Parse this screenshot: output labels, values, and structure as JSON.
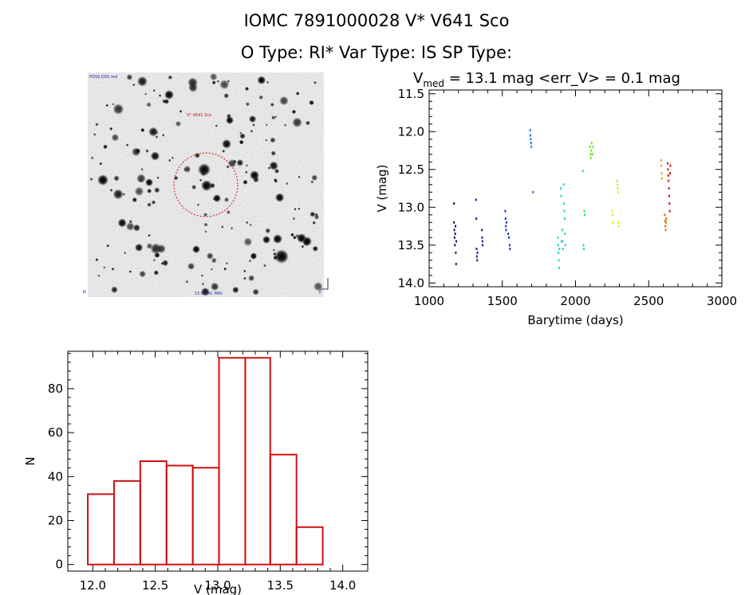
{
  "header": {
    "line1": "IOMC 7891000028    V* V641 Sco",
    "line2": "O Type: RI*  Var Type: IS  SP Type:"
  },
  "sky_image": {
    "label_top_left": "POSS DSS red",
    "label_target": "V* V641 Sco",
    "label_bottom_center": "15.0 ARC MIN",
    "label_bottom_left": "N",
    "label_bottom_right": "E"
  },
  "chart_data": [
    {
      "type": "scatter",
      "title_prefix": "V",
      "title_sub": "med",
      "title_rest": " = 13.1 mag <err_V> = 0.1 mag",
      "xlabel": "Barytime (days)",
      "ylabel": "V (mag)",
      "xlim": [
        1000,
        3000
      ],
      "ylim": [
        14.05,
        11.45
      ],
      "xticks": [
        1000,
        1500,
        2000,
        2500,
        3000
      ],
      "yticks": [
        11.5,
        12.0,
        12.5,
        13.0,
        13.5,
        14.0
      ],
      "series": [
        {
          "name": "s1",
          "color": "#33005a",
          "points": [
            [
              1170,
              12.95
            ],
            [
              1170,
              13.2
            ],
            [
              1172,
              13.3
            ],
            [
              1174,
              13.4
            ],
            [
              1176,
              13.5
            ],
            [
              1178,
              13.35
            ],
            [
              1180,
              13.25
            ],
            [
              1182,
              13.6
            ],
            [
              1184,
              13.75
            ],
            [
              1186,
              13.45
            ]
          ]
        },
        {
          "name": "s2",
          "color": "#2d1a8c",
          "points": [
            [
              1320,
              12.9
            ],
            [
              1322,
              13.15
            ],
            [
              1324,
              13.55
            ],
            [
              1326,
              13.65
            ],
            [
              1328,
              13.7
            ],
            [
              1330,
              13.6
            ],
            [
              1360,
              13.3
            ],
            [
              1362,
              13.4
            ],
            [
              1364,
              13.45
            ],
            [
              1366,
              13.5
            ]
          ]
        },
        {
          "name": "s3",
          "color": "#1f3cb4",
          "points": [
            [
              1520,
              13.05
            ],
            [
              1522,
              13.15
            ],
            [
              1524,
              13.25
            ],
            [
              1526,
              13.3
            ],
            [
              1528,
              13.2
            ],
            [
              1540,
              13.35
            ],
            [
              1545,
              13.4
            ],
            [
              1550,
              13.5
            ],
            [
              1552,
              13.55
            ]
          ]
        },
        {
          "name": "s4",
          "color": "#1e7ad0",
          "points": [
            [
              1690,
              11.98
            ],
            [
              1692,
              12.05
            ],
            [
              1694,
              12.1
            ],
            [
              1696,
              12.15
            ],
            [
              1698,
              12.2
            ],
            [
              1710,
              12.8
            ]
          ]
        },
        {
          "name": "s5",
          "color": "#2ed0d0",
          "points": [
            [
              1880,
              13.4
            ],
            [
              1882,
              13.5
            ],
            [
              1884,
              13.6
            ],
            [
              1886,
              13.7
            ],
            [
              1888,
              13.8
            ],
            [
              1890,
              13.55
            ],
            [
              1900,
              12.75
            ],
            [
              1902,
              12.85
            ],
            [
              1904,
              13.45
            ],
            [
              1910,
              13.3
            ],
            [
              1912,
              13.45
            ],
            [
              1914,
              13.55
            ],
            [
              1920,
              12.7
            ],
            [
              1922,
              12.95
            ],
            [
              1924,
              13.05
            ],
            [
              1926,
              13.15
            ],
            [
              1928,
              13.35
            ],
            [
              1930,
              13.5
            ]
          ]
        },
        {
          "name": "s6",
          "color": "#2ee070",
          "points": [
            [
              2050,
              12.52
            ],
            [
              2055,
              13.5
            ],
            [
              2057,
              13.55
            ],
            [
              2060,
              13.05
            ],
            [
              2062,
              13.1
            ]
          ]
        },
        {
          "name": "s7",
          "color": "#70e81e",
          "points": [
            [
              2100,
              12.2
            ],
            [
              2102,
              12.3
            ],
            [
              2105,
              12.35
            ],
            [
              2108,
              12.25
            ],
            [
              2110,
              12.15
            ],
            [
              2115,
              12.3
            ],
            [
              2120,
              12.2
            ]
          ]
        },
        {
          "name": "s8",
          "color": "#e0e81e",
          "points": [
            [
              2250,
              13.05
            ],
            [
              2252,
              13.1
            ],
            [
              2254,
              13.2
            ],
            [
              2285,
              12.65
            ],
            [
              2287,
              12.7
            ],
            [
              2289,
              12.75
            ],
            [
              2291,
              12.8
            ],
            [
              2293,
              13.2
            ],
            [
              2295,
              13.25
            ]
          ]
        },
        {
          "name": "s9",
          "color": "#e8b000",
          "points": [
            [
              2585,
              12.38
            ],
            [
              2587,
              12.45
            ],
            [
              2589,
              12.55
            ],
            [
              2591,
              12.62
            ]
          ]
        },
        {
          "name": "s10",
          "color": "#e86a00",
          "points": [
            [
              2610,
              13.1
            ],
            [
              2612,
              13.18
            ],
            [
              2614,
              13.25
            ],
            [
              2616,
              13.3
            ],
            [
              2618,
              13.2
            ],
            [
              2620,
              13.15
            ]
          ]
        },
        {
          "name": "s11",
          "color": "#cc1e1e",
          "points": [
            [
              2630,
              12.42
            ],
            [
              2632,
              12.5
            ],
            [
              2634,
              12.58
            ],
            [
              2636,
              12.65
            ],
            [
              2638,
              12.75
            ],
            [
              2640,
              12.85
            ],
            [
              2642,
              12.95
            ],
            [
              2644,
              13.05
            ],
            [
              2646,
              12.55
            ],
            [
              2648,
              12.45
            ]
          ]
        }
      ]
    },
    {
      "type": "bar",
      "xlabel": "V (mag)",
      "ylabel": "N",
      "xlim": [
        11.8,
        14.2
      ],
      "ylim": [
        -3,
        97
      ],
      "xticks": [
        12.0,
        12.5,
        13.0,
        13.5,
        14.0
      ],
      "yticks": [
        0,
        20,
        40,
        60,
        80
      ],
      "bar_color": "#d01010",
      "bins": [
        {
          "x0": 11.96,
          "x1": 12.17,
          "value": 32
        },
        {
          "x0": 12.17,
          "x1": 12.38,
          "value": 38
        },
        {
          "x0": 12.38,
          "x1": 12.59,
          "value": 47
        },
        {
          "x0": 12.59,
          "x1": 12.8,
          "value": 45
        },
        {
          "x0": 12.8,
          "x1": 13.01,
          "value": 44
        },
        {
          "x0": 13.01,
          "x1": 13.22,
          "value": 94
        },
        {
          "x0": 13.22,
          "x1": 13.42,
          "value": 94
        },
        {
          "x0": 13.42,
          "x1": 13.63,
          "value": 50
        },
        {
          "x0": 13.63,
          "x1": 13.84,
          "value": 17
        }
      ]
    }
  ]
}
